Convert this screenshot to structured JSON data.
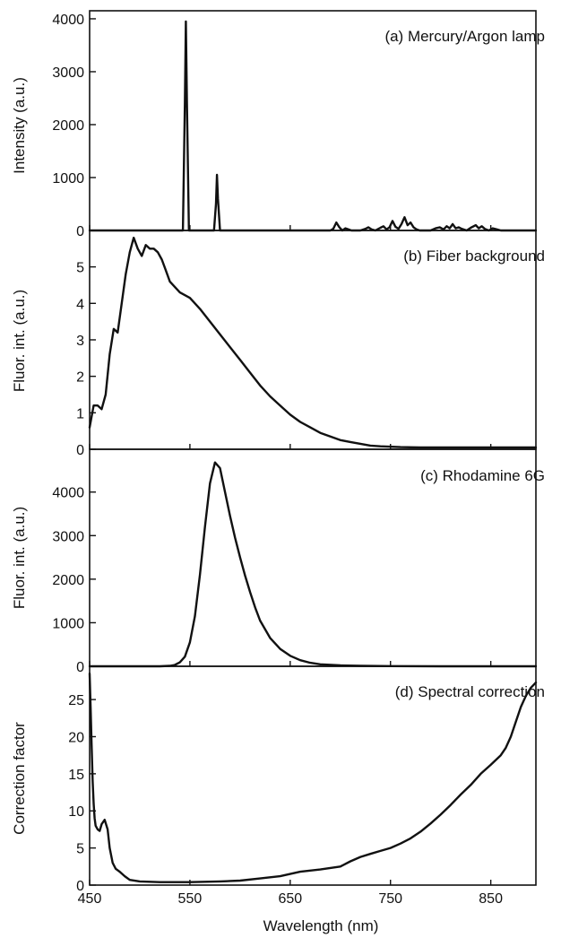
{
  "chart_data": [
    {
      "type": "line",
      "title": "(a) Mercury/Argon lamp",
      "xlabel": "",
      "ylabel": "Intensity (a.u.)",
      "xlim": [
        450,
        895
      ],
      "ylim": [
        0,
        4050
      ],
      "yticks": [
        0,
        1000,
        2000,
        3000,
        4000
      ],
      "xticks": [
        450,
        550,
        650,
        750,
        850
      ],
      "x": [
        450,
        540,
        543,
        545,
        546,
        547,
        549,
        552,
        570,
        574,
        576,
        577,
        578,
        580,
        582,
        690,
        693,
        696,
        699,
        702,
        705,
        708,
        711,
        720,
        725,
        728,
        731,
        735,
        740,
        743,
        746,
        749,
        752,
        755,
        758,
        761,
        764,
        767,
        770,
        773,
        776,
        779,
        790,
        795,
        799,
        803,
        806,
        809,
        812,
        815,
        818,
        821,
        826,
        830,
        835,
        838,
        841,
        844,
        848,
        852,
        856,
        860,
        865,
        880,
        895
      ],
      "series": [
        {
          "values": [
            0,
            0,
            0,
            2400,
            3950,
            2400,
            0,
            0,
            0,
            0,
            500,
            1050,
            600,
            0,
            0,
            0,
            30,
            150,
            60,
            0,
            40,
            20,
            0,
            0,
            30,
            60,
            20,
            0,
            50,
            80,
            20,
            60,
            180,
            70,
            30,
            120,
            250,
            100,
            150,
            60,
            20,
            0,
            0,
            40,
            60,
            20,
            80,
            40,
            120,
            40,
            60,
            30,
            0,
            50,
            100,
            40,
            80,
            30,
            0,
            40,
            20,
            0,
            0,
            0,
            0
          ]
        }
      ]
    },
    {
      "type": "line",
      "title": "(b) Fiber background",
      "xlabel": "",
      "ylabel": "Fluor. int. (a.u.)",
      "xlim": [
        450,
        895
      ],
      "ylim": [
        0,
        5.9
      ],
      "yticks": [
        0,
        1,
        2,
        3,
        4,
        5
      ],
      "xticks": [
        450,
        550,
        650,
        750,
        850
      ],
      "x": [
        450,
        454,
        458,
        462,
        466,
        470,
        474,
        478,
        482,
        486,
        490,
        494,
        498,
        502,
        506,
        510,
        514,
        518,
        522,
        526,
        530,
        540,
        550,
        560,
        570,
        580,
        590,
        600,
        610,
        620,
        630,
        640,
        650,
        660,
        670,
        680,
        690,
        700,
        710,
        720,
        730,
        740,
        760,
        780,
        800,
        820,
        840,
        860,
        880,
        895
      ],
      "series": [
        {
          "values": [
            0.6,
            1.2,
            1.2,
            1.1,
            1.5,
            2.6,
            3.3,
            3.2,
            4.0,
            4.8,
            5.4,
            5.8,
            5.5,
            5.3,
            5.6,
            5.5,
            5.5,
            5.4,
            5.2,
            4.9,
            4.6,
            4.3,
            4.15,
            3.85,
            3.5,
            3.15,
            2.8,
            2.45,
            2.1,
            1.75,
            1.45,
            1.2,
            0.95,
            0.75,
            0.6,
            0.45,
            0.35,
            0.25,
            0.2,
            0.15,
            0.1,
            0.08,
            0.06,
            0.05,
            0.05,
            0.05,
            0.05,
            0.05,
            0.05,
            0.05
          ]
        }
      ]
    },
    {
      "type": "line",
      "title": "(c) Rhodamine 6G",
      "xlabel": "",
      "ylabel": "Fluor. int. (a.u.)",
      "xlim": [
        450,
        895
      ],
      "ylim": [
        0,
        4900
      ],
      "yticks": [
        0,
        1000,
        2000,
        3000,
        4000
      ],
      "xticks": [
        450,
        550,
        650,
        750,
        850
      ],
      "x": [
        450,
        520,
        530,
        535,
        540,
        545,
        550,
        555,
        560,
        565,
        570,
        575,
        580,
        585,
        590,
        595,
        600,
        605,
        610,
        615,
        620,
        630,
        640,
        650,
        660,
        670,
        680,
        700,
        720,
        750,
        800,
        895
      ],
      "series": [
        {
          "values": [
            0,
            0,
            10,
            30,
            90,
            220,
            550,
            1150,
            2100,
            3200,
            4200,
            4680,
            4550,
            4000,
            3450,
            2950,
            2500,
            2080,
            1700,
            1350,
            1050,
            650,
            400,
            240,
            140,
            80,
            45,
            20,
            10,
            5,
            0,
            0
          ]
        }
      ]
    },
    {
      "type": "line",
      "title": "(d) Spectral correction",
      "xlabel": "Wavelength (nm)",
      "ylabel": "Correction factor",
      "xlim": [
        450,
        895
      ],
      "ylim": [
        0,
        29
      ],
      "yticks": [
        0,
        5,
        10,
        15,
        20,
        25
      ],
      "xticks": [
        450,
        550,
        650,
        750,
        850
      ],
      "x": [
        450,
        451,
        452,
        453,
        454,
        455,
        456,
        458,
        460,
        462,
        465,
        468,
        470,
        473,
        476,
        480,
        485,
        490,
        500,
        520,
        550,
        580,
        600,
        620,
        640,
        650,
        660,
        680,
        700,
        710,
        720,
        730,
        740,
        750,
        760,
        770,
        780,
        790,
        800,
        810,
        820,
        830,
        840,
        850,
        860,
        865,
        870,
        875,
        880,
        885,
        890,
        895
      ],
      "series": [
        {
          "values": [
            28.5,
            24,
            19,
            14,
            11,
            9,
            8,
            7.5,
            7.3,
            8.2,
            8.8,
            7.5,
            5,
            3,
            2.2,
            1.8,
            1.2,
            0.7,
            0.5,
            0.4,
            0.4,
            0.5,
            0.6,
            0.9,
            1.2,
            1.5,
            1.8,
            2.1,
            2.5,
            3.2,
            3.8,
            4.2,
            4.6,
            5.0,
            5.6,
            6.3,
            7.2,
            8.3,
            9.5,
            10.8,
            12.2,
            13.5,
            15.0,
            16.2,
            17.5,
            18.5,
            20.0,
            22.0,
            24.0,
            25.5,
            26.6,
            27.3
          ]
        }
      ]
    }
  ]
}
